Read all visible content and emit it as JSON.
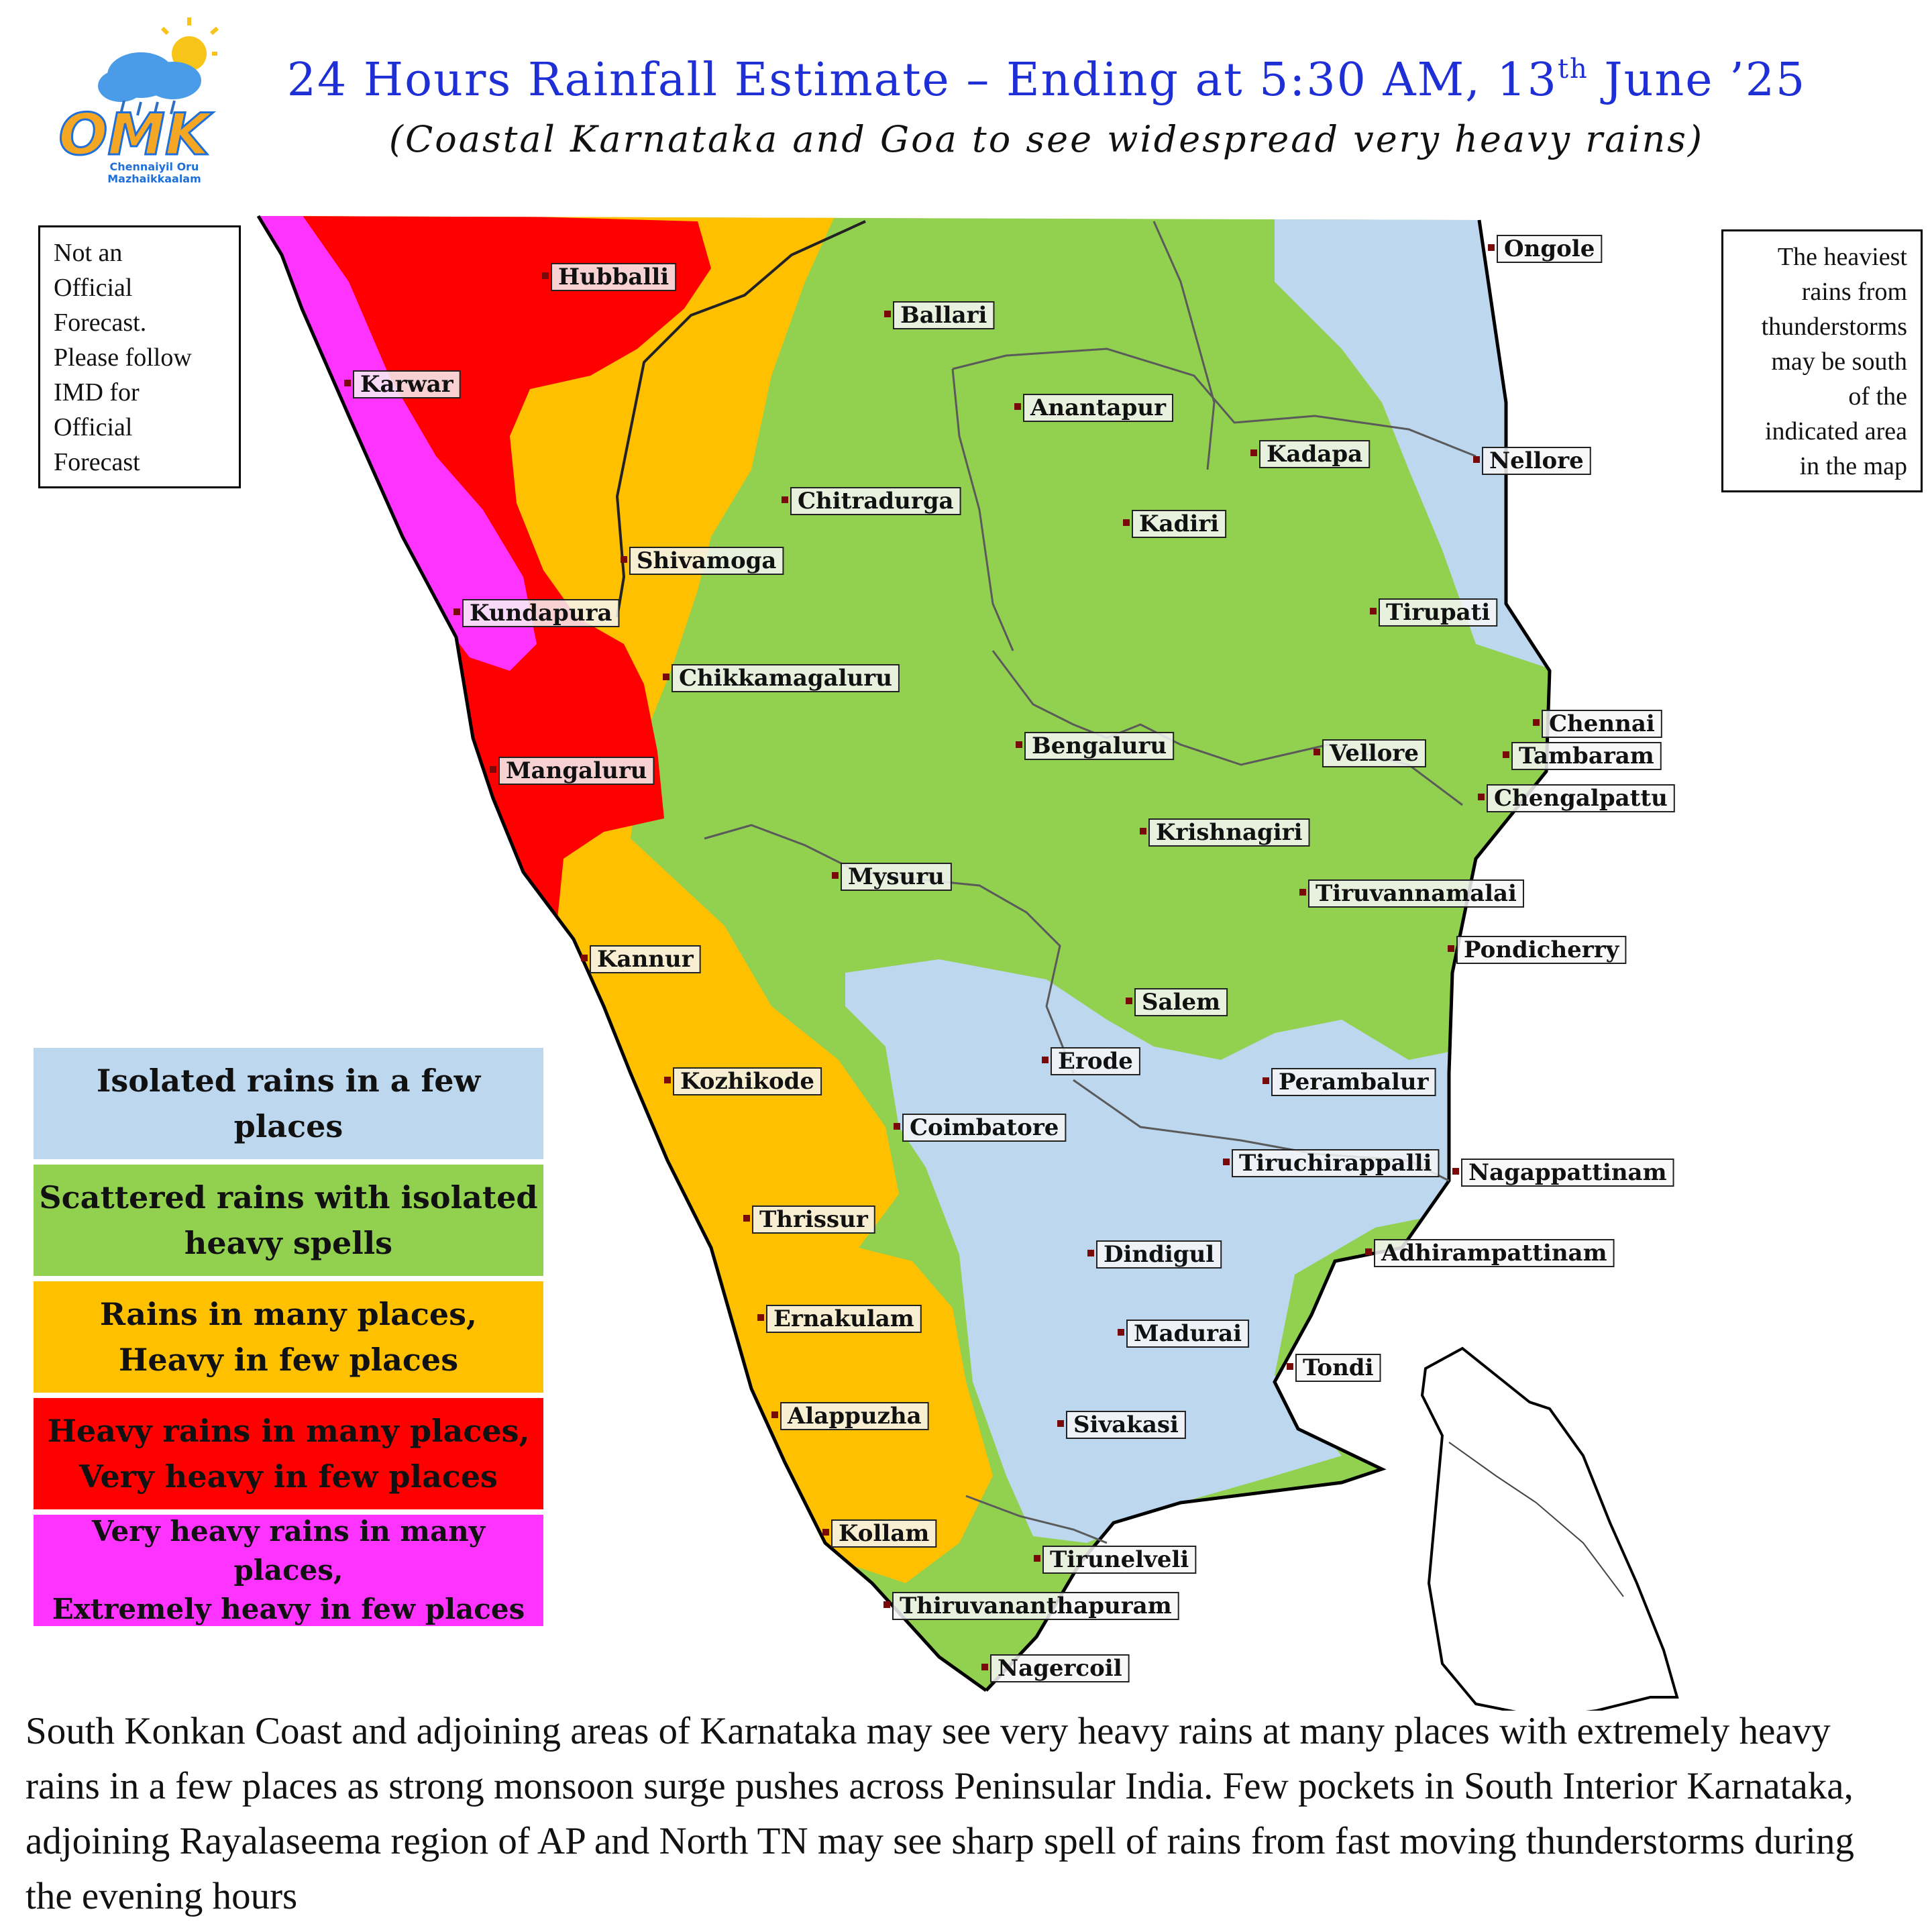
{
  "header": {
    "title_main": "24 Hours Rainfall Estimate – Ending at 5:30 AM, 13",
    "title_sup": "th",
    "title_end": " June ’25",
    "subtitle": "(Coastal Karnataka and Goa to see widespread very heavy rains)"
  },
  "logo": {
    "mark": "OMK",
    "tagline_1": "Chennaiyil Oru",
    "tagline_2": "Mazhaikkaalam",
    "colors": {
      "crescent": "#1e6fd9",
      "text": "#f5a623",
      "sun": "#f7c51a",
      "cloud": "#4a9be8"
    },
    "icon": "cloud-sun-rain-icon"
  },
  "notes": {
    "left": [
      "Not an",
      "Official",
      "Forecast.",
      "Please follow",
      "IMD for",
      "Official",
      "Forecast"
    ],
    "right": [
      "The heaviest",
      "rains from",
      "thunderstorms",
      "may be south",
      "of  the",
      "indicated area",
      "in the map"
    ]
  },
  "map": {
    "zone_colors": {
      "isolated": "#bdd7ee",
      "scattered": "#92d050",
      "many": "#ffc000",
      "heavy": "#ff0000",
      "very_heavy": "#ff33ff"
    },
    "places": [
      "Hubballi",
      "Karwar",
      "Ballari",
      "Anantapur",
      "Chitradurga",
      "Shivamoga",
      "Kundapura",
      "Chikkamagaluru",
      "Mangaluru",
      "Kannur",
      "Kozhikode",
      "Thrissur",
      "Ernakulam",
      "Alappuzha",
      "Kollam",
      "Thiruvananthapuram",
      "Nagercoil",
      "Tirunelveli",
      "Sivakasi",
      "Madurai",
      "Dindigul",
      "Coimbatore",
      "Erode",
      "Salem",
      "Mysuru",
      "Bengaluru",
      "Krishnagiri",
      "Vellore",
      "Tiruvannamalai",
      "Kadiri",
      "Kadapa",
      "Tirupati",
      "Ongole",
      "Nellore",
      "Chennai",
      "Tambaram",
      "Chengalpattu",
      "Pondicherry",
      "Perambalur",
      "Tiruchirappalli",
      "Nagappattinam",
      "Adhirampattinam",
      "Tondi"
    ]
  },
  "legend": [
    {
      "lines": [
        "Isolated rains in a few",
        "places"
      ],
      "color": "#bdd7ee"
    },
    {
      "lines": [
        "Scattered rains with isolated",
        "heavy spells"
      ],
      "color": "#92d050"
    },
    {
      "lines": [
        "Rains in many places,",
        "Heavy in few places"
      ],
      "color": "#ffc000"
    },
    {
      "lines": [
        "Heavy rains in many places,",
        "Very heavy in few places"
      ],
      "color": "#ff0000"
    },
    {
      "lines": [
        "Very heavy rains in many places,",
        "Extremely heavy in few places"
      ],
      "color": "#ff33ff"
    }
  ],
  "description": "South Konkan Coast and adjoining areas of Karnataka may see very heavy rains at many places with extremely heavy rains in a few places as strong monsoon surge pushes across Peninsular India.  Few pockets in South Interior Karnataka, adjoining Rayalaseema region of AP and North TN may see sharp spell of rains from fast moving thunderstorms during the evening hours"
}
